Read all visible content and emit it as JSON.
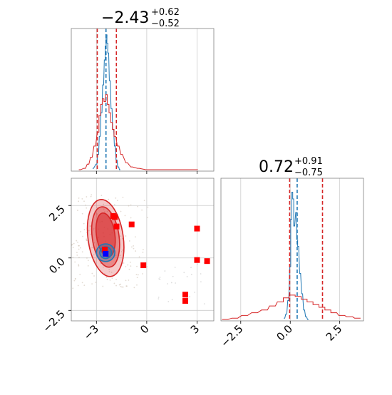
{
  "chart_data": [
    {
      "type": "histogram",
      "panel": "marginal-param-1",
      "title_value": "−2.43",
      "title_upper": "+0.62",
      "title_lower": "−0.52",
      "xlim": [
        -4.5,
        4.0
      ],
      "grid": true,
      "colors": {
        "blue": "#1f77b4",
        "red": "#d62728"
      },
      "series": [
        {
          "color": "blue",
          "bins": [
            [
              -3.2,
              0.02
            ],
            [
              -3.0,
              0.05
            ],
            [
              -2.9,
              0.12
            ],
            [
              -2.8,
              0.25
            ],
            [
              -2.7,
              0.42
            ],
            [
              -2.6,
              0.62
            ],
            [
              -2.5,
              0.8
            ],
            [
              -2.45,
              0.9
            ],
            [
              -2.4,
              0.98
            ],
            [
              -2.35,
              0.92
            ],
            [
              -2.3,
              0.85
            ],
            [
              -2.2,
              0.65
            ],
            [
              -2.1,
              0.45
            ],
            [
              -2.0,
              0.3
            ],
            [
              -1.9,
              0.18
            ],
            [
              -1.8,
              0.08
            ],
            [
              -1.7,
              0.03
            ],
            [
              -1.6,
              0.01
            ]
          ],
          "quantiles": [
            -2.43
          ]
        },
        {
          "color": "red",
          "bins": [
            [
              -4.0,
              0.01
            ],
            [
              -3.7,
              0.02
            ],
            [
              -3.5,
              0.05
            ],
            [
              -3.3,
              0.1
            ],
            [
              -3.1,
              0.18
            ],
            [
              -2.9,
              0.28
            ],
            [
              -2.8,
              0.4
            ],
            [
              -2.7,
              0.48
            ],
            [
              -2.6,
              0.52
            ],
            [
              -2.5,
              0.5
            ],
            [
              -2.4,
              0.55
            ],
            [
              -2.3,
              0.48
            ],
            [
              -2.2,
              0.42
            ],
            [
              -2.1,
              0.35
            ],
            [
              -2.0,
              0.3
            ],
            [
              -1.9,
              0.25
            ],
            [
              -1.7,
              0.18
            ],
            [
              -1.5,
              0.12
            ],
            [
              -1.2,
              0.06
            ],
            [
              -0.9,
              0.03
            ],
            [
              -0.5,
              0.02
            ],
            [
              0.0,
              0.01
            ],
            [
              1.5,
              0.01
            ],
            [
              2.6,
              0.01
            ],
            [
              3.0,
              0.01
            ]
          ],
          "quantiles": [
            -2.95,
            -1.81
          ]
        }
      ]
    },
    {
      "type": "scatter",
      "panel": "joint-param-1-vs-param-2",
      "xlim": [
        -4.5,
        4.0
      ],
      "ylim": [
        -3.0,
        3.8
      ],
      "xticks": [
        "−3",
        "0",
        "3"
      ],
      "yticks": [
        "2.5",
        "0.0",
        "−2.5"
      ],
      "grid": true,
      "colors": {
        "blue": "#1f77b4",
        "red": "#d62728",
        "red_marker": "#ff0000",
        "blue_marker": "#0000ff"
      },
      "red_contours": [
        {
          "cx": -2.45,
          "cy": 0.95,
          "rx": 1.05,
          "ry": 1.85,
          "opacity": 0.25
        },
        {
          "cx": -2.45,
          "cy": 1.0,
          "rx": 0.8,
          "ry": 1.45,
          "opacity": 0.4
        },
        {
          "cx": -2.45,
          "cy": 1.1,
          "rx": 0.55,
          "ry": 1.05,
          "opacity": 0.55
        }
      ],
      "blue_contours": [
        {
          "cx": -2.45,
          "cy": 0.25,
          "rx": 0.55,
          "ry": 0.42
        },
        {
          "cx": -2.45,
          "cy": 0.25,
          "rx": 0.35,
          "ry": 0.28
        }
      ],
      "red_markers": [
        [
          -1.9,
          1.95
        ],
        [
          -1.8,
          1.5
        ],
        [
          -0.9,
          1.6
        ],
        [
          -2.0,
          2.0
        ],
        [
          -0.2,
          -0.35
        ],
        [
          3.0,
          1.4
        ],
        [
          3.0,
          -0.1
        ],
        [
          3.6,
          -0.15
        ],
        [
          2.3,
          -1.75
        ],
        [
          2.3,
          -2.05
        ],
        [
          -2.5,
          0.4
        ]
      ],
      "blue_markers": [
        [
          -2.45,
          0.2
        ]
      ]
    },
    {
      "type": "histogram",
      "panel": "marginal-param-2",
      "title_value": "0.72",
      "title_upper": "+0.91",
      "title_lower": "−0.75",
      "xlim": [
        -3.5,
        3.7
      ],
      "xticks": [
        "−2.5",
        "0.0",
        "2.5"
      ],
      "grid": true,
      "series": [
        {
          "color": "blue",
          "bins": [
            [
              -0.3,
              0.02
            ],
            [
              -0.2,
              0.05
            ],
            [
              -0.1,
              0.15
            ],
            [
              0.0,
              0.4
            ],
            [
              0.05,
              0.75
            ],
            [
              0.1,
              0.95
            ],
            [
              0.15,
              0.9
            ],
            [
              0.2,
              0.7
            ],
            [
              0.3,
              0.8
            ],
            [
              0.35,
              0.6
            ],
            [
              0.4,
              0.55
            ],
            [
              0.5,
              0.35
            ],
            [
              0.6,
              0.2
            ],
            [
              0.7,
              0.08
            ],
            [
              0.8,
              0.03
            ],
            [
              0.9,
              0.01
            ]
          ],
          "quantiles": [
            0.35
          ]
        },
        {
          "color": "red",
          "bins": [
            [
              -3.3,
              0.01
            ],
            [
              -2.8,
              0.02
            ],
            [
              -2.3,
              0.04
            ],
            [
              -1.8,
              0.06
            ],
            [
              -1.3,
              0.08
            ],
            [
              -0.9,
              0.11
            ],
            [
              -0.5,
              0.14
            ],
            [
              -0.2,
              0.17
            ],
            [
              0.1,
              0.19
            ],
            [
              0.4,
              0.18
            ],
            [
              0.7,
              0.16
            ],
            [
              1.0,
              0.14
            ],
            [
              1.3,
              0.12
            ],
            [
              1.6,
              0.1
            ],
            [
              1.9,
              0.08
            ],
            [
              2.2,
              0.06
            ],
            [
              2.6,
              0.04
            ],
            [
              3.0,
              0.03
            ],
            [
              3.4,
              0.02
            ]
          ],
          "quantiles": [
            -0.03,
            1.63
          ]
        }
      ]
    }
  ]
}
